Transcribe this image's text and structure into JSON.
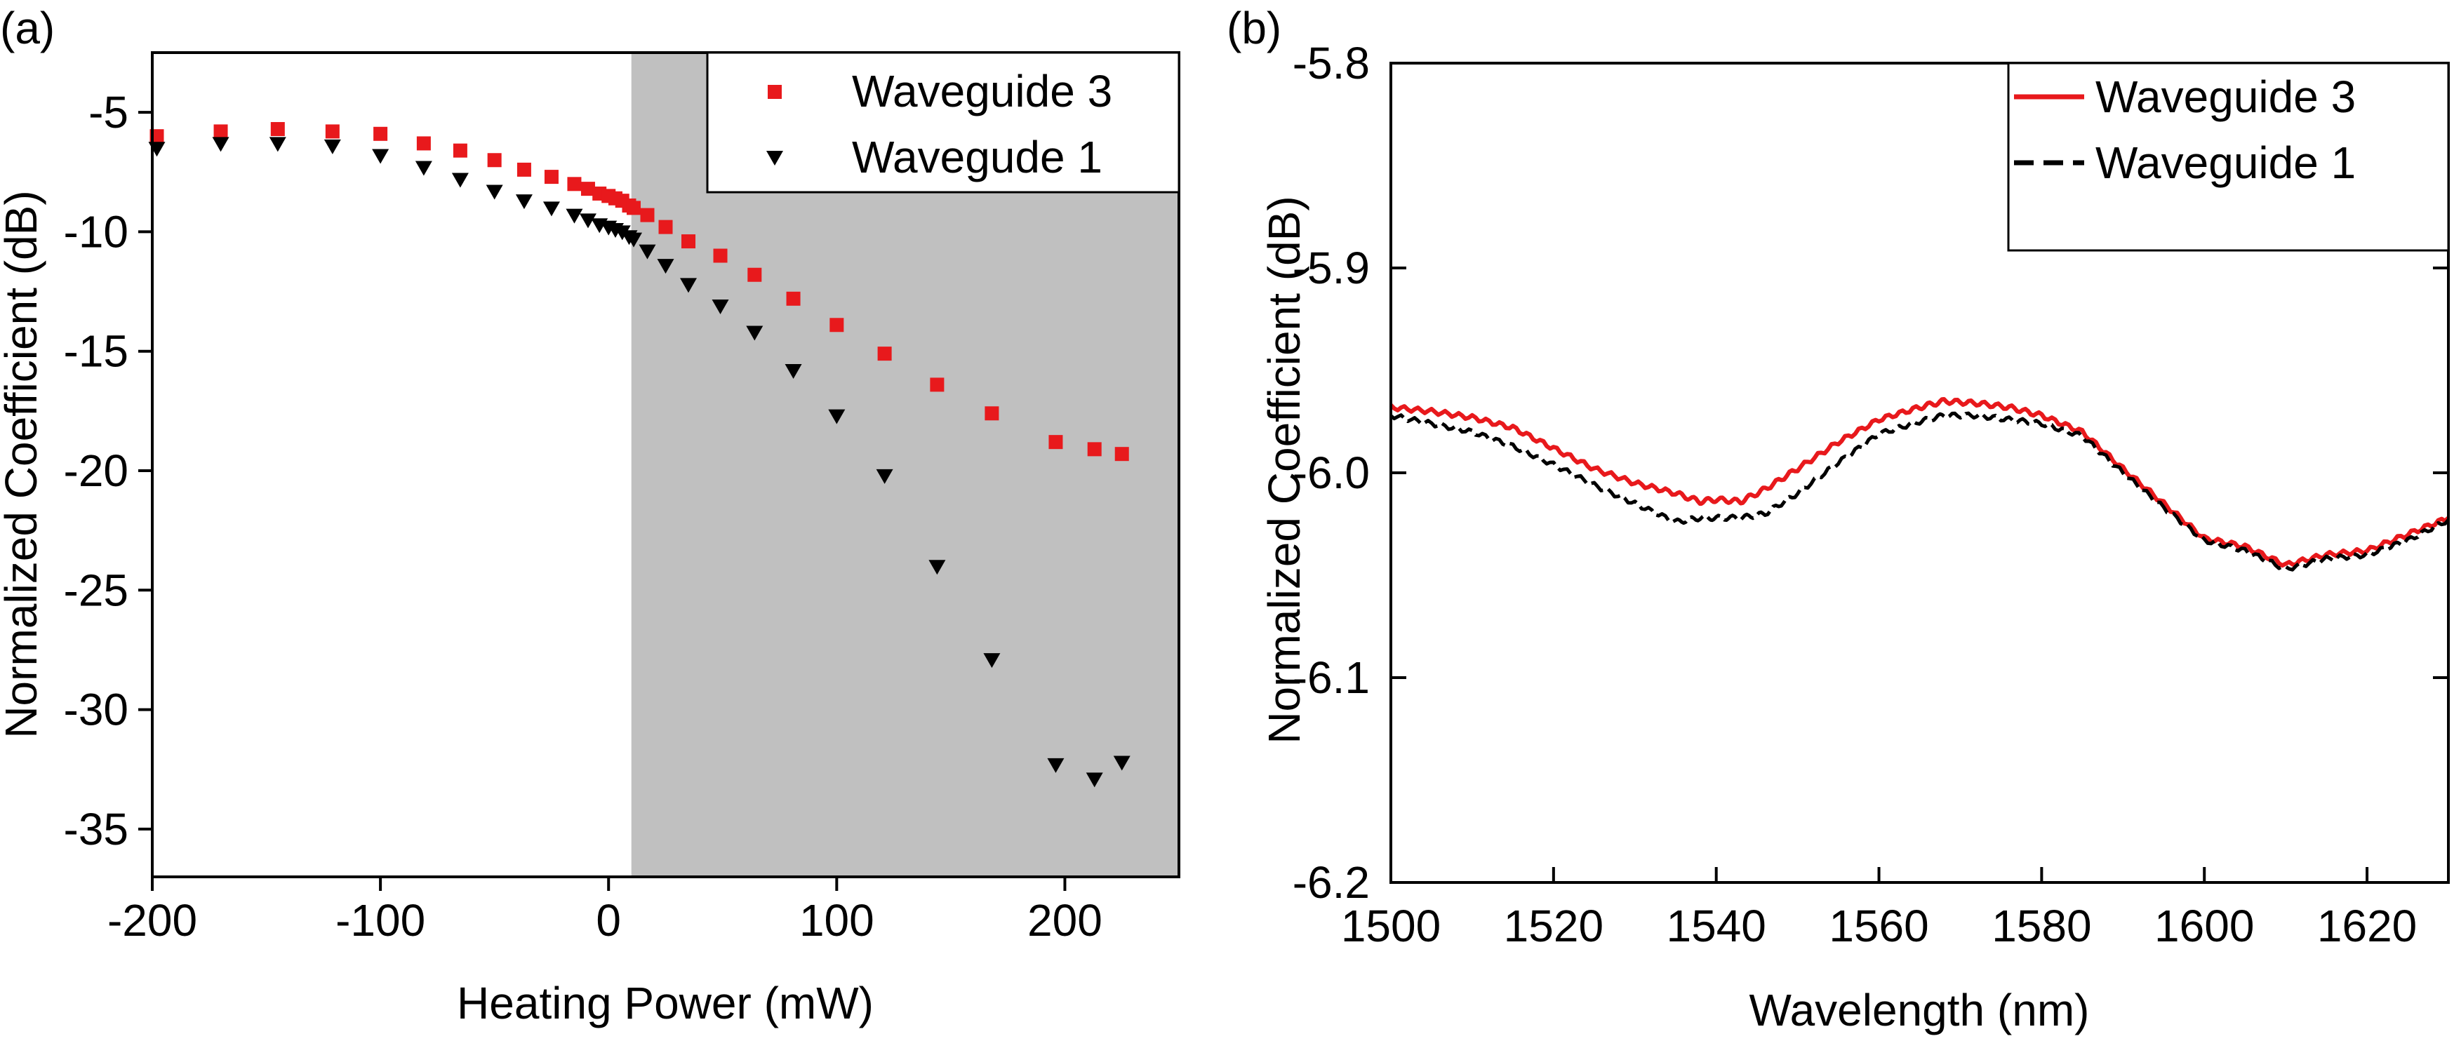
{
  "colors": {
    "red": "#e8191c",
    "black": "#000000",
    "shade": "#c0c0c0",
    "axis": "#000000"
  },
  "chart_data": [
    {
      "type": "scatter",
      "panel_label": "(a)",
      "xlabel": "Heating Power (mW)",
      "ylabel": "Normalized Coefficient (dB)",
      "xlim": [
        -200,
        250
      ],
      "ylim": [
        -37,
        -2.5
      ],
      "xticks": [
        -200,
        -100,
        0,
        100,
        200
      ],
      "xtick_labels": [
        "-200",
        "-100",
        "0",
        "100",
        "200"
      ],
      "yticks": [
        -5,
        -10,
        -15,
        -20,
        -25,
        -30,
        -35
      ],
      "ytick_labels": [
        "-5",
        "-10",
        "-15",
        "-20",
        "-25",
        "-30",
        "-35"
      ],
      "shaded_region": {
        "x_from": 10,
        "x_to": 250
      },
      "legend_position": "top-right",
      "series": [
        {
          "name": "Waveguide 3",
          "marker": "square",
          "color": "#e8191c",
          "x": [
            -198,
            -170,
            -145,
            -121,
            -100,
            -81,
            -65,
            -50,
            -37,
            -25,
            -15,
            -9,
            -4,
            0,
            3,
            6,
            9,
            11,
            17,
            25,
            35,
            49,
            64,
            81,
            100,
            121,
            144,
            168,
            196,
            213,
            225
          ],
          "y": [
            -6.0,
            -5.8,
            -5.7,
            -5.8,
            -5.9,
            -6.3,
            -6.6,
            -7.0,
            -7.4,
            -7.7,
            -8.0,
            -8.2,
            -8.4,
            -8.5,
            -8.6,
            -8.7,
            -8.9,
            -9.0,
            -9.3,
            -9.8,
            -10.4,
            -11.0,
            -11.8,
            -12.8,
            -13.9,
            -15.1,
            -16.4,
            -17.6,
            -18.8,
            -19.1,
            -19.3
          ]
        },
        {
          "name": "Wavegude 1",
          "marker": "triangle-down",
          "color": "#000000",
          "x": [
            -198,
            -170,
            -145,
            -121,
            -100,
            -81,
            -65,
            -50,
            -37,
            -25,
            -15,
            -9,
            -4,
            0,
            3,
            6,
            9,
            11,
            17,
            25,
            35,
            49,
            64,
            81,
            100,
            121,
            144,
            168,
            196,
            213,
            225
          ],
          "y": [
            -6.5,
            -6.3,
            -6.3,
            -6.4,
            -6.8,
            -7.3,
            -7.8,
            -8.3,
            -8.7,
            -9.0,
            -9.3,
            -9.5,
            -9.7,
            -9.8,
            -9.9,
            -10.0,
            -10.2,
            -10.3,
            -10.8,
            -11.4,
            -12.2,
            -13.1,
            -14.2,
            -15.8,
            -17.7,
            -20.2,
            -24.0,
            -27.9,
            -32.3,
            -32.9,
            -32.2
          ]
        }
      ]
    },
    {
      "type": "line",
      "panel_label": "(b)",
      "xlabel": "Wavelength (nm)",
      "ylabel": "Normalized Coefficient (dB)",
      "xlim": [
        1500,
        1630
      ],
      "ylim": [
        -6.2,
        -5.8
      ],
      "xticks": [
        1500,
        1520,
        1540,
        1560,
        1580,
        1600,
        1620
      ],
      "xtick_labels": [
        "1500",
        "1520",
        "1540",
        "1560",
        "1580",
        "1600",
        "1620"
      ],
      "yticks": [
        -5.8,
        -5.9,
        -6.0,
        -6.1,
        -6.2
      ],
      "ytick_labels": [
        "-5.8",
        "-5.9",
        "-6.0",
        "-6.1",
        "-6.2"
      ],
      "legend_position": "top-right",
      "series": [
        {
          "name": "Waveguide 3",
          "style": "solid",
          "color": "#e8191c",
          "x": [
            1500,
            1505,
            1510,
            1515,
            1520,
            1525,
            1530,
            1535,
            1538,
            1540,
            1543,
            1546,
            1550,
            1555,
            1560,
            1565,
            1568,
            1572,
            1576,
            1580,
            1585,
            1590,
            1595,
            1600,
            1605,
            1610,
            1615,
            1620,
            1625,
            1630
          ],
          "y": [
            -5.968,
            -5.97,
            -5.973,
            -5.978,
            -5.988,
            -5.998,
            -6.005,
            -6.01,
            -6.014,
            -6.013,
            -6.014,
            -6.008,
            -5.998,
            -5.985,
            -5.974,
            -5.968,
            -5.965,
            -5.966,
            -5.968,
            -5.972,
            -5.98,
            -5.998,
            -6.015,
            -6.032,
            -6.036,
            -6.045,
            -6.04,
            -6.038,
            -6.03,
            -6.022
          ]
        },
        {
          "name": "Waveguide 1",
          "style": "dash",
          "color": "#000000",
          "x": [
            1500,
            1505,
            1510,
            1515,
            1520,
            1525,
            1530,
            1535,
            1538,
            1540,
            1543,
            1546,
            1550,
            1555,
            1560,
            1565,
            1568,
            1572,
            1576,
            1580,
            1585,
            1590,
            1595,
            1600,
            1605,
            1610,
            1615,
            1620,
            1625,
            1630
          ],
          "y": [
            -5.972,
            -5.976,
            -5.98,
            -5.987,
            -5.996,
            -6.006,
            -6.015,
            -6.024,
            -6.022,
            -6.022,
            -6.022,
            -6.02,
            -6.01,
            -5.995,
            -5.981,
            -5.975,
            -5.972,
            -5.972,
            -5.974,
            -5.976,
            -5.982,
            -6.0,
            -6.017,
            -6.033,
            -6.038,
            -6.047,
            -6.042,
            -6.04,
            -6.033,
            -6.023
          ]
        }
      ]
    }
  ]
}
